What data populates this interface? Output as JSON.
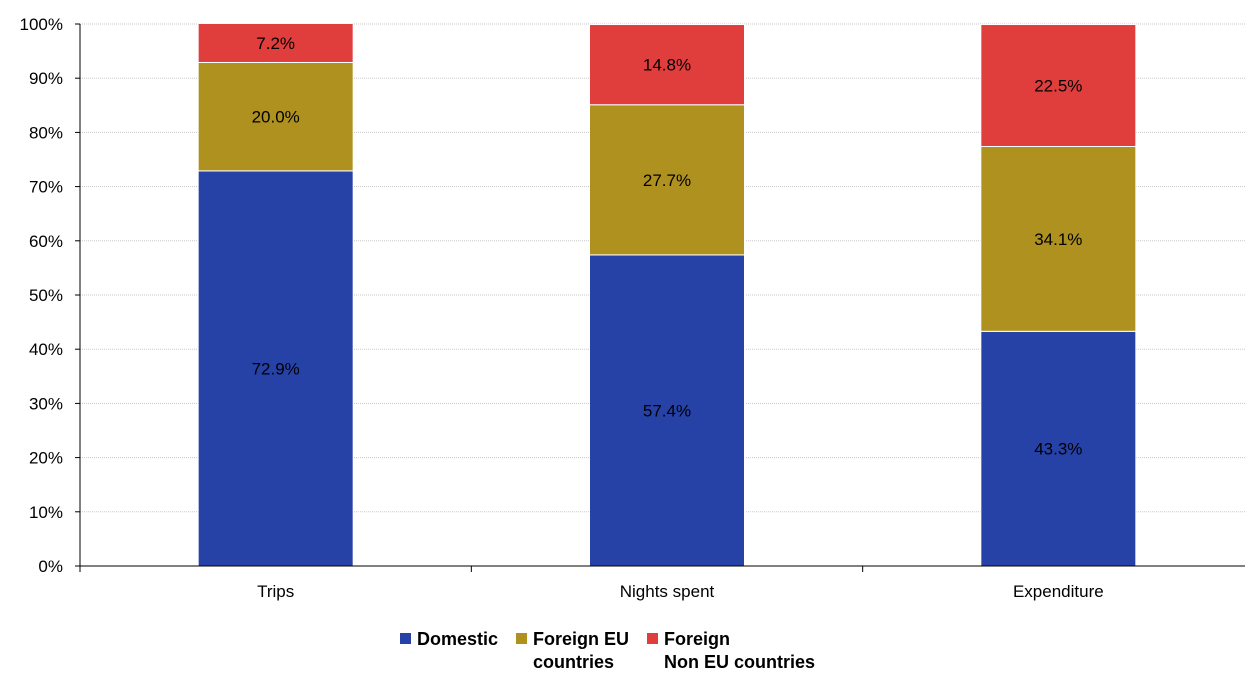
{
  "chart_data": {
    "type": "bar",
    "stacked": true,
    "categories": [
      "Trips",
      "Nights spent",
      "Expenditure"
    ],
    "series": [
      {
        "name": "Domestic",
        "values": [
          72.9,
          57.4,
          43.3
        ],
        "labels": [
          "72.9%",
          "57.4%",
          "43.3%"
        ],
        "color": "#2742A6"
      },
      {
        "name": "Foreign EU countries",
        "values": [
          20.0,
          27.7,
          34.1
        ],
        "labels": [
          "20.0%",
          "27.7%",
          "34.1%"
        ],
        "color": "#AE911E"
      },
      {
        "name": "Foreign Non EU countries",
        "values": [
          7.2,
          14.8,
          22.5
        ],
        "labels": [
          "7.2%",
          "14.8%",
          "22.5%"
        ],
        "color": "#E03D3D"
      }
    ],
    "yticks": [
      "0%",
      "10%",
      "20%",
      "30%",
      "40%",
      "50%",
      "60%",
      "70%",
      "80%",
      "90%",
      "100%"
    ],
    "ylim": [
      0,
      100
    ],
    "grid": true,
    "legend_position": "bottom"
  },
  "legend": {
    "domestic": [
      "Domestic"
    ],
    "foreign_eu": [
      "Foreign EU",
      "countries"
    ],
    "foreign_non_eu": [
      "Foreign",
      "Non EU countries"
    ]
  }
}
